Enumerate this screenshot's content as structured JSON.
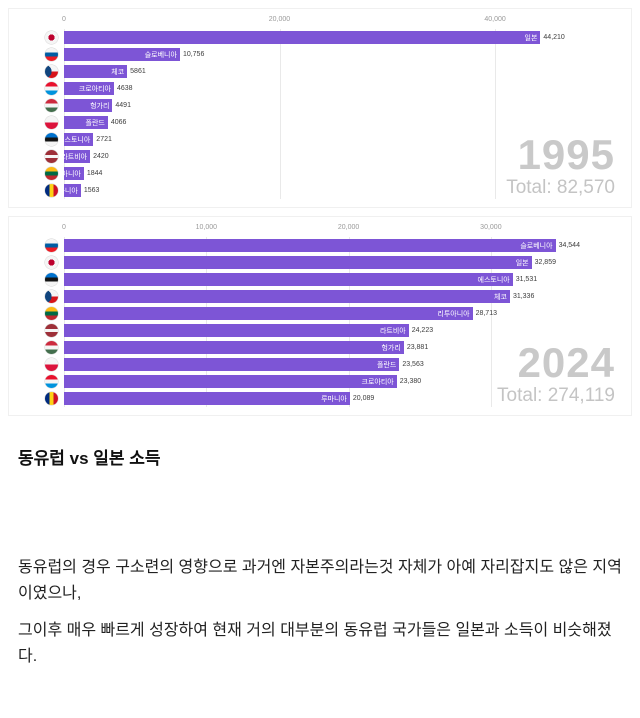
{
  "colors": {
    "bar": "#7d55d6",
    "year_text": "#c9c9c9",
    "total_text": "#c4c4c4",
    "gridline": "#e9e9e9"
  },
  "chart_data": [
    {
      "type": "bar",
      "orientation": "horizontal",
      "year": "1995",
      "total_label": "Total: 82,570",
      "axis_max": 51500,
      "grid": true,
      "x_ticks": [
        {
          "value": 0,
          "label": "0"
        },
        {
          "value": 20000,
          "label": "20,000"
        },
        {
          "value": 40000,
          "label": "40,000"
        }
      ],
      "categories": [
        "일본",
        "슬로베니아",
        "체코",
        "크로아티아",
        "헝가리",
        "폴란드",
        "에스토니아",
        "라트비아",
        "리투아니아",
        "루마니아"
      ],
      "values": [
        44210,
        10756,
        5861,
        4638,
        4491,
        4066,
        2721,
        2420,
        1844,
        1563
      ],
      "value_labels": [
        "44,210",
        "10,756",
        "5861",
        "4638",
        "4491",
        "4066",
        "2721",
        "2420",
        "1844",
        "1563"
      ],
      "flags": [
        "japan",
        "slovenia",
        "czechia",
        "croatia",
        "hungary",
        "poland",
        "estonia",
        "latvia",
        "lithuania",
        "romania"
      ]
    },
    {
      "type": "bar",
      "orientation": "horizontal",
      "year": "2024",
      "total_label": "Total: 274,119",
      "axis_max": 39000,
      "grid": true,
      "x_ticks": [
        {
          "value": 0,
          "label": "0"
        },
        {
          "value": 10000,
          "label": "10,000"
        },
        {
          "value": 20000,
          "label": "20,000"
        },
        {
          "value": 30000,
          "label": "30,000"
        }
      ],
      "categories": [
        "슬로베니아",
        "일본",
        "에스토니아",
        "체코",
        "리투아니아",
        "라트비아",
        "헝가리",
        "폴란드",
        "크로아티아",
        "루마니아"
      ],
      "values": [
        34544,
        32859,
        31531,
        31336,
        28713,
        24223,
        23881,
        23563,
        23380,
        20089
      ],
      "value_labels": [
        "34,544",
        "32,859",
        "31,531",
        "31,336",
        "28,713",
        "24,223",
        "23,881",
        "23,563",
        "23,380",
        "20,089"
      ],
      "flags": [
        "slovenia",
        "japan",
        "estonia",
        "czechia",
        "lithuania",
        "latvia",
        "hungary",
        "poland",
        "croatia",
        "romania"
      ]
    }
  ],
  "caption": {
    "title": "동유럽 vs 일본 소득"
  },
  "body": {
    "p1": "동유럽의 경우 구소련의 영향으로 과거엔 자본주의라는것 자체가 아예 자리잡지도 않은 지역이였으나,",
    "p2": "그이후 매우 빠르게 성장하여 현재 거의 대부분의 동유럽 국가들은 일본과 소득이 비슷해졌다."
  }
}
